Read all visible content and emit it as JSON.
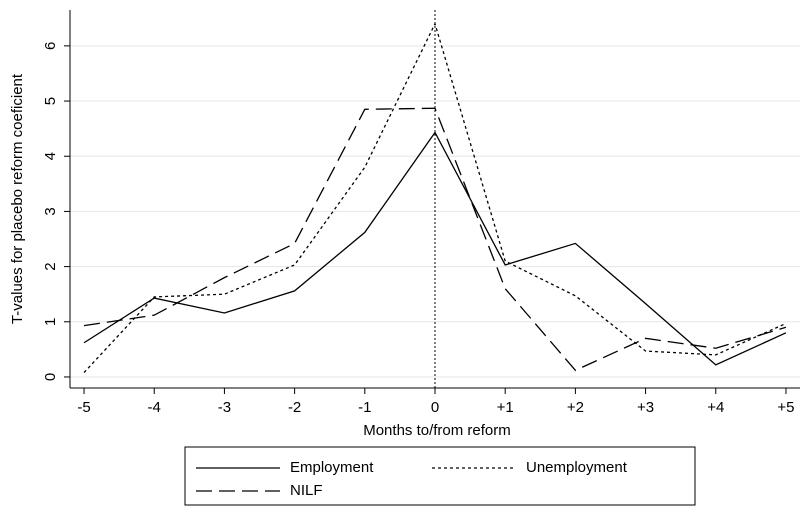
{
  "chart_data": {
    "type": "line",
    "x": [
      -5,
      -4,
      -3,
      -2,
      -1,
      0,
      1,
      2,
      3,
      4,
      5
    ],
    "xlabel": "Months to/from reform",
    "ylabel": "T-values for placebo reform coeficient",
    "xlim": [
      -5.2,
      5.2
    ],
    "ylim": [
      -0.2,
      6.65
    ],
    "xticks": [
      -5,
      -4,
      -3,
      -2,
      -1,
      0,
      {
        "value": 1,
        "label": "+1"
      },
      {
        "value": 2,
        "label": "+2"
      },
      {
        "value": 3,
        "label": "+3"
      },
      {
        "value": 4,
        "label": "+4"
      },
      {
        "value": 5,
        "label": "+5"
      }
    ],
    "yticks": [
      0,
      1,
      2,
      3,
      4,
      5,
      6
    ],
    "grid": true,
    "vline": 0,
    "legend": "bottom",
    "series": [
      {
        "name": "Employment",
        "color": "#000000",
        "dash": "solid",
        "values": [
          0.62,
          1.43,
          1.16,
          1.56,
          2.62,
          4.43,
          2.03,
          2.42,
          1.33,
          0.22,
          0.8
        ]
      },
      {
        "name": "Unemployment",
        "color": "#000000",
        "dash": "dotted",
        "values": [
          0.08,
          1.45,
          1.5,
          2.03,
          3.8,
          6.4,
          2.1,
          1.47,
          0.47,
          0.4,
          0.97
        ]
      },
      {
        "name": "NILF",
        "color": "#000000",
        "dash": "longdash",
        "values": [
          0.93,
          1.12,
          1.8,
          2.42,
          4.85,
          4.87,
          1.6,
          0.12,
          0.7,
          0.52,
          0.9
        ]
      }
    ]
  }
}
